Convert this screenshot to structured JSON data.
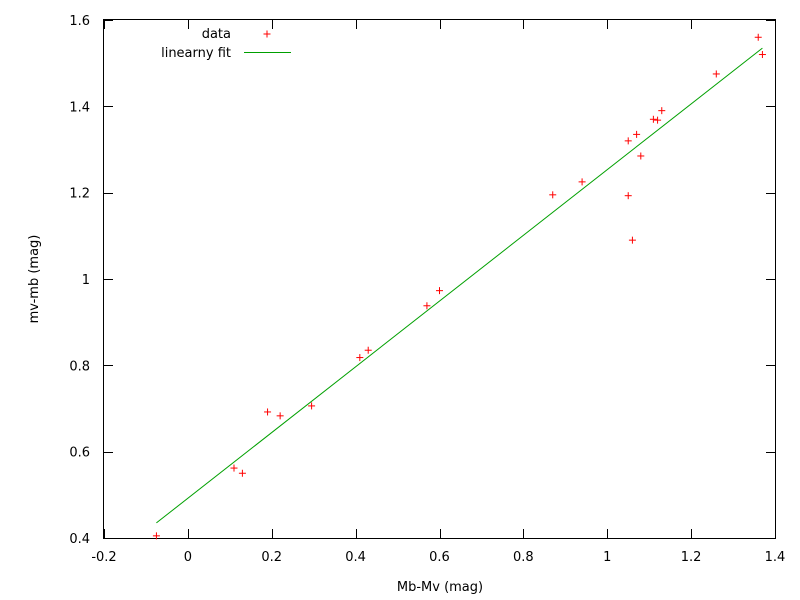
{
  "chart_data": {
    "type": "scatter",
    "xlabel": "Mb-Mv (mag)",
    "ylabel": "mv-mb (mag)",
    "xlim": [
      -0.2,
      1.4
    ],
    "ylim": [
      0.4,
      1.6
    ],
    "xticks": [
      -0.2,
      0,
      0.2,
      0.4,
      0.6,
      0.8,
      1,
      1.2,
      1.4
    ],
    "yticks": [
      0.4,
      0.6,
      0.8,
      1,
      1.2,
      1.4,
      1.6
    ],
    "grid": false,
    "legend_position": "top-left",
    "series": [
      {
        "name": "data",
        "kind": "points",
        "marker": "plus",
        "color": "#ff0000",
        "x": [
          -0.075,
          0.11,
          0.13,
          0.19,
          0.22,
          0.295,
          0.41,
          0.43,
          0.57,
          0.6,
          0.87,
          0.94,
          1.05,
          1.05,
          1.06,
          1.07,
          1.08,
          1.11,
          1.12,
          1.13,
          1.26,
          1.36,
          1.37
        ],
        "y": [
          0.405,
          0.562,
          0.55,
          0.692,
          0.683,
          0.706,
          0.818,
          0.835,
          0.938,
          0.973,
          1.195,
          1.225,
          1.32,
          1.193,
          1.09,
          1.335,
          1.285,
          1.37,
          1.368,
          1.39,
          1.475,
          1.56,
          1.52
        ]
      },
      {
        "name": "linearny fit",
        "kind": "line",
        "color": "#00a000",
        "x": [
          -0.075,
          1.37
        ],
        "y": [
          0.435,
          1.535
        ]
      }
    ]
  }
}
